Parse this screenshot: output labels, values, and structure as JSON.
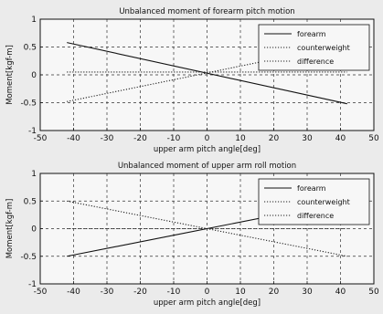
{
  "chart_data": [
    {
      "type": "line",
      "title": "Unbalanced moment of forearm pitch motion",
      "xlabel": "upper arm pitch angle[deg]",
      "ylabel": "Moment[kgf-m]",
      "xlim": [
        -50,
        50
      ],
      "ylim": [
        -1,
        1
      ],
      "xticks": [
        "-50",
        "-40",
        "-30",
        "-20",
        "-10",
        "0",
        "10",
        "20",
        "30",
        "40",
        "50"
      ],
      "yticks": [
        "-1",
        "-0.5",
        "0",
        "0.5",
        "1"
      ],
      "grid": true,
      "legend_position": "top-right",
      "series": [
        {
          "name": "forearm",
          "style": "solid",
          "x": [
            -42,
            42
          ],
          "y": [
            0.58,
            -0.52
          ]
        },
        {
          "name": "counterweight",
          "style": "dotted",
          "x": [
            -42,
            42
          ],
          "y": [
            -0.48,
            0.55
          ]
        },
        {
          "name": "difference",
          "style": "dotted",
          "x": [
            -42,
            42
          ],
          "y": [
            0.05,
            0.05
          ]
        }
      ]
    },
    {
      "type": "line",
      "title": "Unbalanced moment of upper arm roll motion",
      "xlabel": "upper arm pitch angle[deg]",
      "ylabel": "Moment[kgf-m]",
      "xlim": [
        -50,
        50
      ],
      "ylim": [
        -1,
        1
      ],
      "xticks": [
        "-50",
        "-40",
        "-30",
        "-20",
        "-10",
        "0",
        "10",
        "20",
        "30",
        "40",
        "50"
      ],
      "yticks": [
        "-1",
        "-0.5",
        "0",
        "0.5",
        "1"
      ],
      "grid": true,
      "legend_position": "top-right",
      "series": [
        {
          "name": "forearm",
          "style": "solid",
          "x": [
            -42,
            42
          ],
          "y": [
            -0.5,
            0.5
          ]
        },
        {
          "name": "counterweight",
          "style": "dotted",
          "x": [
            -42,
            42
          ],
          "y": [
            0.5,
            -0.5
          ]
        },
        {
          "name": "difference",
          "style": "dotted",
          "x": [
            -42,
            42
          ],
          "y": [
            0,
            0
          ]
        }
      ]
    }
  ]
}
